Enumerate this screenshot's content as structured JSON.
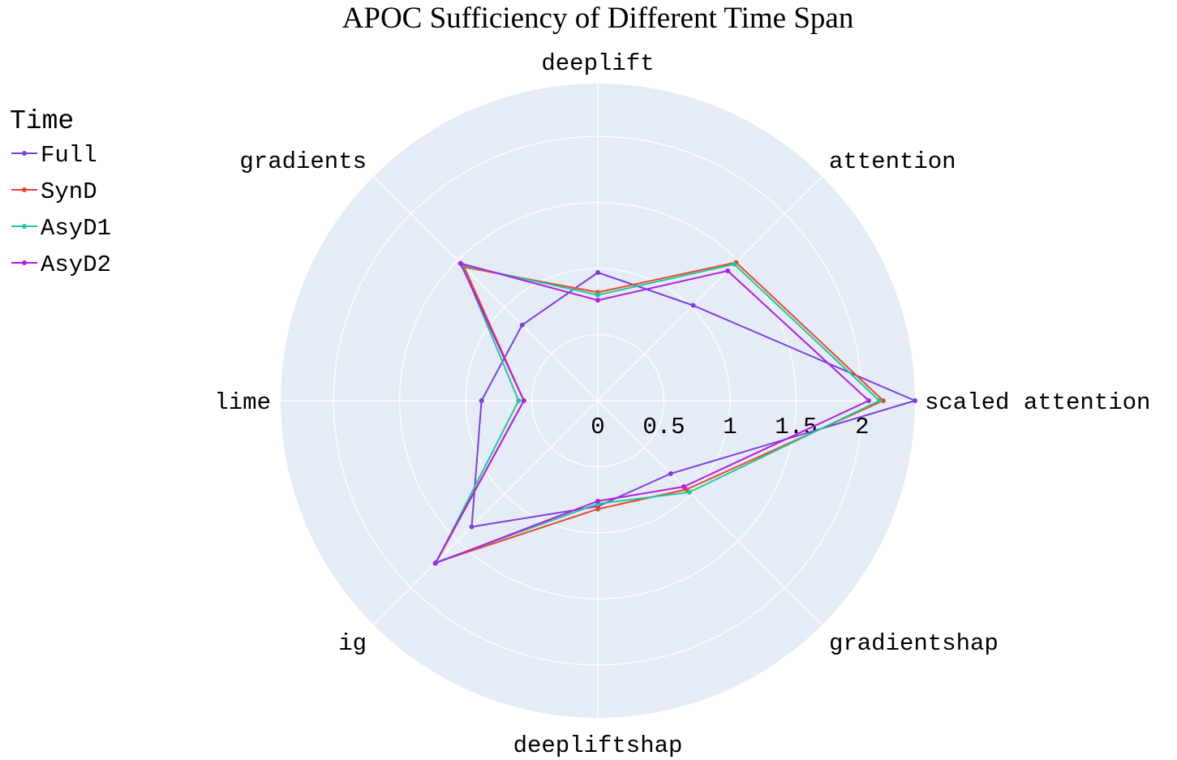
{
  "chart_data": {
    "type": "radar",
    "title": "APOC Sufficiency of Different Time Span",
    "categories": [
      "scaled attention",
      "attention",
      "deeplift",
      "gradients",
      "lime",
      "ig",
      "deepliftshap",
      "gradientshap"
    ],
    "radial_ticks": [
      "0",
      "0.5",
      "1",
      "1.5",
      "2"
    ],
    "radial_range": [
      0,
      2.4
    ],
    "grid": true,
    "legend": {
      "title": "Time",
      "placement": "top-left"
    },
    "series": [
      {
        "name": "Full",
        "color": "#7b3fe4",
        "values": [
          2.4,
          1.02,
          0.97,
          0.81,
          0.88,
          1.35,
          0.8,
          0.78
        ]
      },
      {
        "name": "SynD",
        "color": "#e8472e",
        "values": [
          2.16,
          1.48,
          0.82,
          1.43,
          0.56,
          1.73,
          0.82,
          0.95
        ]
      },
      {
        "name": "AsyD1",
        "color": "#1fc99b",
        "values": [
          2.13,
          1.46,
          0.8,
          1.45,
          0.6,
          1.73,
          0.78,
          0.98
        ]
      },
      {
        "name": "AsyD2",
        "color": "#b11ee6",
        "values": [
          2.05,
          1.39,
          0.76,
          1.47,
          0.56,
          1.74,
          0.76,
          0.92
        ]
      }
    ]
  }
}
